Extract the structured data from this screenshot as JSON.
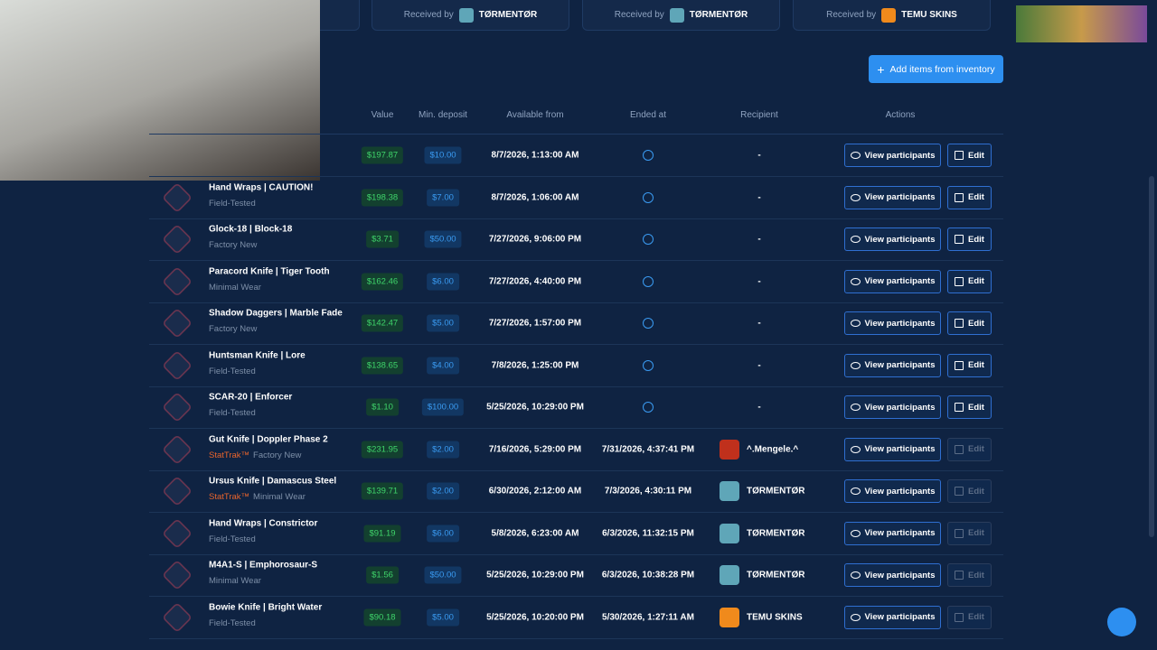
{
  "top_cards": [
    {
      "label": "Received by",
      "name": "TØRMENTØR"
    },
    {
      "label": "Received by",
      "name": "TØRMENTØR"
    },
    {
      "label": "Received by",
      "name": "TEMU SKINS"
    }
  ],
  "add_button": "Add items from inventory",
  "table": {
    "headers": [
      "Value",
      "Min. deposit",
      "Available from",
      "Ended at",
      "Recipient",
      "Actions"
    ],
    "actions": {
      "view": "View participants",
      "edit": "Edit"
    },
    "rows": [
      {
        "value": "$197.87",
        "min_deposit": "$10.00",
        "available_from": "8/7/2026, 1:13:00 AM",
        "recipient": "-"
      },
      {
        "name": "Hand Wraps | CAUTION!",
        "condition": "Field-Tested",
        "value": "$198.38",
        "min_deposit": "$7.00",
        "available_from": "8/7/2026, 1:06:00 AM",
        "recipient": "-"
      },
      {
        "name": "Glock-18 | Block-18",
        "condition": "Factory New",
        "value": "$3.71",
        "min_deposit": "$50.00",
        "available_from": "7/27/2026, 9:06:00 PM",
        "recipient": "-"
      },
      {
        "name": "Paracord Knife | Tiger Tooth",
        "condition": "Minimal Wear",
        "value": "$162.46",
        "min_deposit": "$6.00",
        "available_from": "7/27/2026, 4:40:00 PM",
        "recipient": "-"
      },
      {
        "name": "Shadow Daggers | Marble Fade",
        "condition": "Factory New",
        "value": "$142.47",
        "min_deposit": "$5.00",
        "available_from": "7/27/2026, 1:57:00 PM",
        "recipient": "-"
      },
      {
        "name": "Huntsman Knife | Lore",
        "condition": "Field-Tested",
        "value": "$138.65",
        "min_deposit": "$4.00",
        "available_from": "7/8/2026, 1:25:00 PM",
        "recipient": "-"
      },
      {
        "name": "SCAR-20 | Enforcer",
        "condition": "Field-Tested",
        "value": "$1.10",
        "min_deposit": "$100.00",
        "available_from": "5/25/2026, 10:29:00 PM",
        "recipient": "-"
      },
      {
        "name": "Gut Knife | Doppler Phase 2",
        "stattrak": "StatTrak™",
        "condition": "Factory New",
        "value": "$231.95",
        "min_deposit": "$2.00",
        "available_from": "7/16/2026, 5:29:00 PM",
        "ended_at": "7/31/2026, 4:37:41 PM",
        "recipient": "^.Mengele.^"
      },
      {
        "name": "Ursus Knife | Damascus Steel",
        "stattrak": "StatTrak™",
        "condition": "Minimal Wear",
        "value": "$139.71",
        "min_deposit": "$2.00",
        "available_from": "6/30/2026, 2:12:00 AM",
        "ended_at": "7/3/2026, 4:30:11 PM",
        "recipient": "TØRMENTØR"
      },
      {
        "name": "Hand Wraps | Constrictor",
        "condition": "Field-Tested",
        "value": "$91.19",
        "min_deposit": "$6.00",
        "available_from": "5/8/2026, 6:23:00 AM",
        "ended_at": "6/3/2026, 11:32:15 PM",
        "recipient": "TØRMENTØR"
      },
      {
        "name": "M4A1-S | Emphorosaur-S",
        "condition": "Minimal Wear",
        "value": "$1.56",
        "min_deposit": "$50.00",
        "available_from": "5/25/2026, 10:29:00 PM",
        "ended_at": "6/3/2026, 10:38:28 PM",
        "recipient": "TØRMENTØR"
      },
      {
        "name": "Bowie Knife | Bright Water",
        "condition": "Field-Tested",
        "value": "$90.18",
        "min_deposit": "$5.00",
        "available_from": "5/25/2026, 10:20:00 PM",
        "ended_at": "5/30/2026, 1:27:11 AM",
        "recipient": "TEMU SKINS"
      }
    ]
  }
}
